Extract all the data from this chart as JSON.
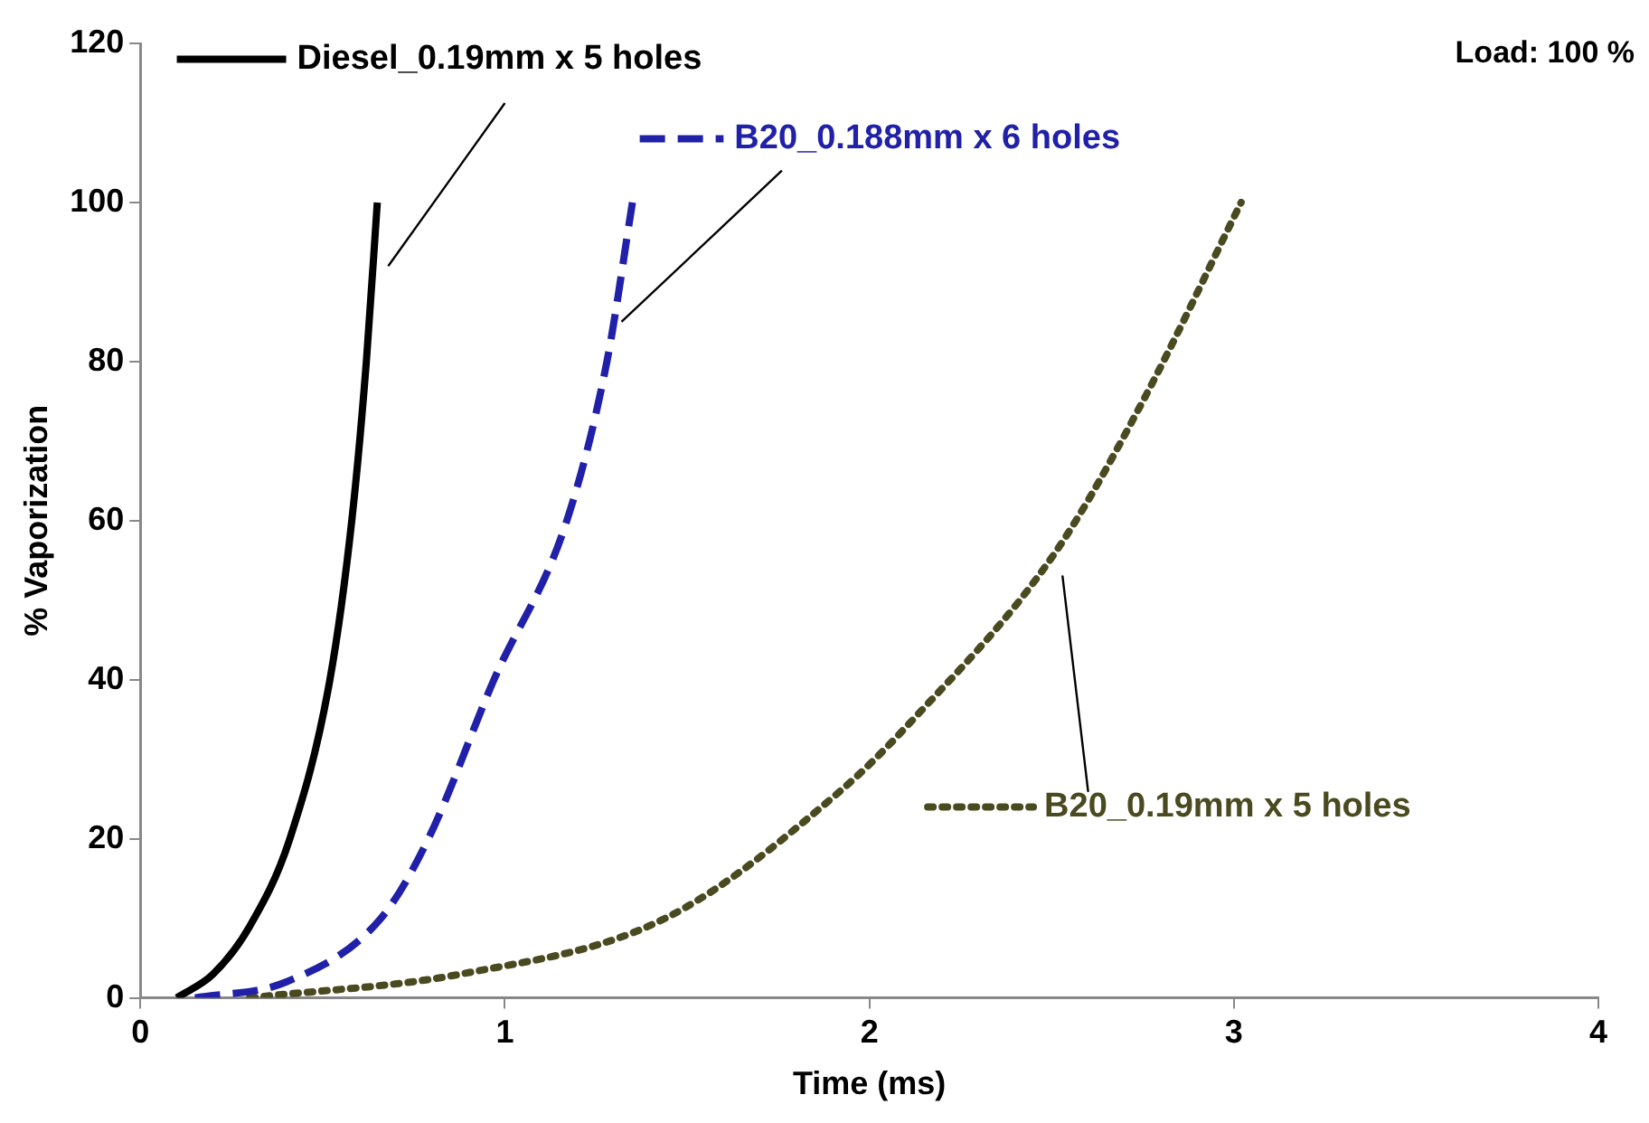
{
  "chart_data": {
    "type": "line",
    "xlabel": "Time (ms)",
    "ylabel": "% Vaporization",
    "annotations": [
      "Load: 100 %"
    ],
    "xlim": [
      0,
      4
    ],
    "xticks": [
      0,
      1,
      2,
      3,
      4
    ],
    "ylim": [
      0,
      120
    ],
    "yticks": [
      0,
      20,
      40,
      60,
      80,
      100,
      120
    ],
    "grid": false,
    "legend": "top",
    "marker": "none",
    "series": [
      {
        "name": "Diesel_0.19mm x 5 holes",
        "color": "#000000",
        "line_style": "solid",
        "x": [
          0.1,
          0.2,
          0.3,
          0.41,
          0.52,
          0.58,
          0.62,
          0.65
        ],
        "values": [
          0,
          3,
          9,
          20,
          40,
          60,
          80,
          100
        ]
      },
      {
        "name": "B20_0.188mm x 6 holes",
        "color": "#2020a8",
        "line_style": "dashed",
        "x": [
          0.15,
          0.4,
          0.66,
          0.79,
          0.97,
          1.17,
          1.28,
          1.35
        ],
        "values": [
          0,
          2,
          10,
          20,
          40,
          60,
          80,
          100
        ]
      },
      {
        "name": "B20_0.19mm x 5 holes",
        "color": "#4a4a20",
        "line_style": "dotted",
        "x": [
          0.3,
          0.88,
          1.44,
          1.92,
          2.12,
          2.51,
          2.75,
          3.02
        ],
        "values": [
          0,
          3,
          10,
          26,
          35,
          56,
          75,
          100
        ]
      }
    ]
  }
}
